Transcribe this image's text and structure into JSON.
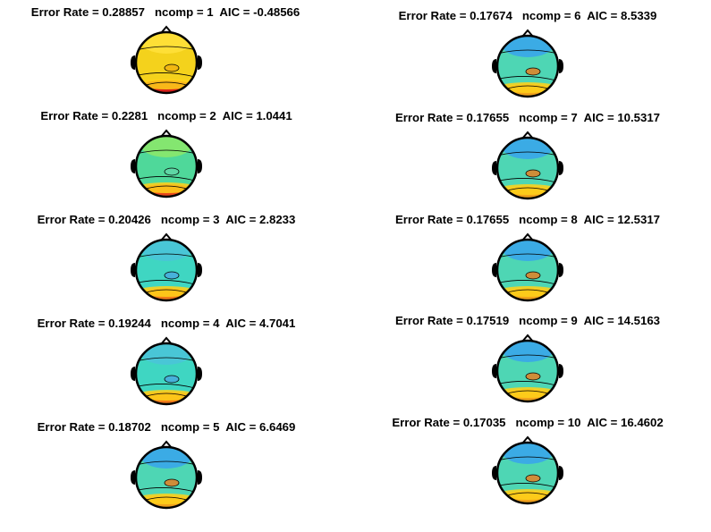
{
  "chart_data": [
    {
      "type": "other",
      "title": "Error Rate = 0.28857   ncomp = 1  AIC = -0.48566",
      "error_rate": 0.28857,
      "ncomp": 1,
      "aic": -0.48566,
      "palette": "yellow"
    },
    {
      "type": "other",
      "title": "Error Rate = 0.2281   ncomp = 2  AIC = 1.0441",
      "error_rate": 0.2281,
      "ncomp": 2,
      "aic": 1.0441,
      "palette": "green"
    },
    {
      "type": "other",
      "title": "Error Rate = 0.20426   ncomp = 3  AIC = 2.8233",
      "error_rate": 0.20426,
      "ncomp": 3,
      "aic": 2.8233,
      "palette": "cyan"
    },
    {
      "type": "other",
      "title": "Error Rate = 0.19244   ncomp = 4  AIC = 4.7041",
      "error_rate": 0.19244,
      "ncomp": 4,
      "aic": 4.7041,
      "palette": "cyan"
    },
    {
      "type": "other",
      "title": "Error Rate = 0.18702   ncomp = 5  AIC = 6.6469",
      "error_rate": 0.18702,
      "ncomp": 5,
      "aic": 6.6469,
      "palette": "blue"
    },
    {
      "type": "other",
      "title": "Error Rate = 0.17674   ncomp = 6  AIC = 8.5339",
      "error_rate": 0.17674,
      "ncomp": 6,
      "aic": 8.5339,
      "palette": "blue"
    },
    {
      "type": "other",
      "title": "Error Rate = 0.17655   ncomp = 7  AIC = 10.5317",
      "error_rate": 0.17655,
      "ncomp": 7,
      "aic": 10.5317,
      "palette": "blue"
    },
    {
      "type": "other",
      "title": "Error Rate = 0.17655   ncomp = 8  AIC = 12.5317",
      "error_rate": 0.17655,
      "ncomp": 8,
      "aic": 12.5317,
      "palette": "blue"
    },
    {
      "type": "other",
      "title": "Error Rate = 0.17519   ncomp = 9  AIC = 14.5163",
      "error_rate": 0.17519,
      "ncomp": 9,
      "aic": 14.5163,
      "palette": "blue"
    },
    {
      "type": "other",
      "title": "Error Rate = 0.17035   ncomp = 10  AIC = 16.4602",
      "error_rate": 0.17035,
      "ncomp": 10,
      "aic": 16.4602,
      "palette": "blue"
    }
  ]
}
